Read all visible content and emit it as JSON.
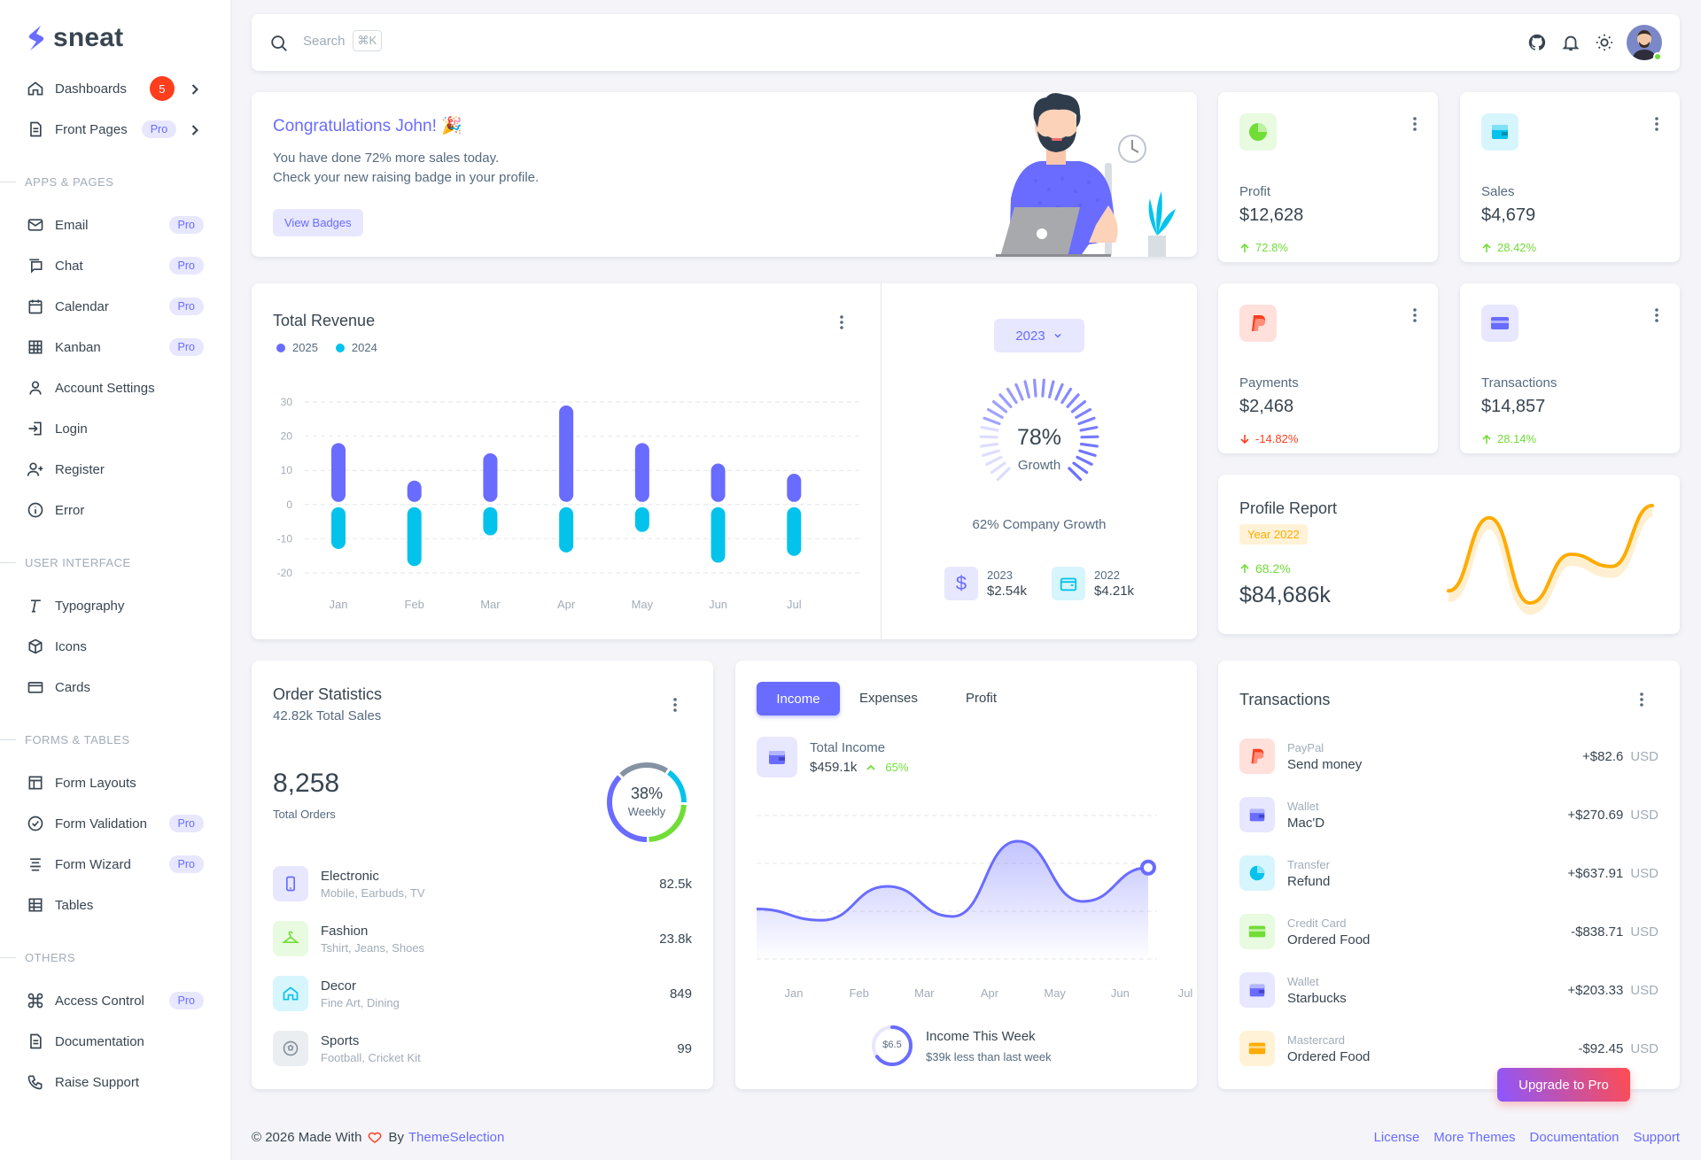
{
  "brand": {
    "name": "sneat"
  },
  "sidebar": {
    "dashboards": {
      "label": "Dashboards",
      "badge": "5"
    },
    "front_pages": {
      "label": "Front Pages",
      "badge": "Pro"
    },
    "sections": {
      "apps": "APPS & PAGES",
      "ui": "USER INTERFACE",
      "forms": "FORMS & TABLES",
      "others": "OTHERS"
    },
    "items": [
      {
        "label": "Email",
        "badge": "Pro",
        "icon": "mail-icon"
      },
      {
        "label": "Chat",
        "badge": "Pro",
        "icon": "chat-icon"
      },
      {
        "label": "Calendar",
        "badge": "Pro",
        "icon": "calendar-icon"
      },
      {
        "label": "Kanban",
        "badge": "Pro",
        "icon": "kanban-icon"
      },
      {
        "label": "Account Settings",
        "icon": "user-icon"
      },
      {
        "label": "Login",
        "icon": "login-icon"
      },
      {
        "label": "Register",
        "icon": "user-plus-icon"
      },
      {
        "label": "Error",
        "icon": "info-icon"
      },
      {
        "label": "Typography",
        "icon": "typography-icon"
      },
      {
        "label": "Icons",
        "icon": "box-icon"
      },
      {
        "label": "Cards",
        "icon": "card-icon"
      },
      {
        "label": "Form Layouts",
        "icon": "layout-icon"
      },
      {
        "label": "Form Validation",
        "badge": "Pro",
        "icon": "check-circle-icon"
      },
      {
        "label": "Form Wizard",
        "badge": "Pro",
        "icon": "list-icon"
      },
      {
        "label": "Tables",
        "icon": "table-icon"
      },
      {
        "label": "Access Control",
        "badge": "Pro",
        "icon": "command-icon"
      },
      {
        "label": "Documentation",
        "icon": "file-icon"
      },
      {
        "label": "Raise Support",
        "icon": "phone-icon"
      }
    ]
  },
  "navbar": {
    "search_placeholder": "Search",
    "shortcut": "⌘K"
  },
  "welcome": {
    "title": "Congratulations John! 🎉",
    "line1": "You have done 72% more sales today.",
    "line2": "Check your new raising badge in your profile.",
    "button": "View Badges"
  },
  "stats": {
    "profit": {
      "label": "Profit",
      "value": "$12,628",
      "trend": "72.8%",
      "direction": "up"
    },
    "sales": {
      "label": "Sales",
      "value": "$4,679",
      "trend": "28.42%",
      "direction": "up"
    },
    "payments": {
      "label": "Payments",
      "value": "$2,468",
      "trend": "-14.82%",
      "direction": "down"
    },
    "transactions": {
      "label": "Transactions",
      "value": "$14,857",
      "trend": "28.14%",
      "direction": "up"
    }
  },
  "revenue": {
    "title": "Total Revenue",
    "year_button": "2023",
    "growth_pct": "78%",
    "growth_label": "Growth",
    "company_growth": "62% Company Growth",
    "y2023": {
      "year": "2023",
      "value": "$2.54k"
    },
    "y2022": {
      "year": "2022",
      "value": "$4.21k"
    }
  },
  "profile_report": {
    "title": "Profile Report",
    "badge": "Year 2022",
    "trend": "68.2%",
    "value": "$84,686k"
  },
  "order_stats": {
    "title": "Order Statistics",
    "subtitle": "42.82k Total Sales",
    "total": "8,258",
    "total_label": "Total Orders",
    "donut_pct": "38%",
    "donut_label": "Weekly",
    "rows": [
      {
        "name": "Electronic",
        "sub": "Mobile, Earbuds, TV",
        "value": "82.5k"
      },
      {
        "name": "Fashion",
        "sub": "Tshirt, Jeans, Shoes",
        "value": "23.8k"
      },
      {
        "name": "Decor",
        "sub": "Fine Art, Dining",
        "value": "849"
      },
      {
        "name": "Sports",
        "sub": "Football, Cricket Kit",
        "value": "99"
      }
    ]
  },
  "income": {
    "tabs": [
      "Income",
      "Expenses",
      "Profit"
    ],
    "total_label": "Total Income",
    "total_value": "$459.1k",
    "trend": "65%",
    "week_value": "$6.5",
    "week_title": "Income This Week",
    "week_sub": "$39k less than last week"
  },
  "transactions": {
    "title": "Transactions",
    "rows": [
      {
        "type": "PayPal",
        "desc": "Send money",
        "amount": "+$82.6",
        "currency": "USD"
      },
      {
        "type": "Wallet",
        "desc": "Mac'D",
        "amount": "+$270.69",
        "currency": "USD"
      },
      {
        "type": "Transfer",
        "desc": "Refund",
        "amount": "+$637.91",
        "currency": "USD"
      },
      {
        "type": "Credit Card",
        "desc": "Ordered Food",
        "amount": "-$838.71",
        "currency": "USD"
      },
      {
        "type": "Wallet",
        "desc": "Starbucks",
        "amount": "+$203.33",
        "currency": "USD"
      },
      {
        "type": "Mastercard",
        "desc": "Ordered Food",
        "amount": "-$92.45",
        "currency": "USD"
      }
    ]
  },
  "upgrade": "Upgrade to Pro",
  "footer": {
    "copyright": "© 2026 Made With",
    "by": "By",
    "company": "ThemeSelection",
    "links": [
      "License",
      "More Themes",
      "Documentation",
      "Support"
    ]
  },
  "colors": {
    "primary": "#696cff",
    "cyan": "#03c3ec",
    "success": "#71dd37",
    "danger": "#ff3e1d",
    "warning": "#ffab00"
  },
  "chart_data": [
    {
      "type": "bar",
      "categories": [
        "Jan",
        "Feb",
        "Mar",
        "Apr",
        "May",
        "Jun",
        "Jul"
      ],
      "series": [
        {
          "name": "2025",
          "values": [
            18,
            7,
            15,
            29,
            18,
            12,
            9
          ]
        },
        {
          "name": "2024",
          "values": [
            -13,
            -18,
            -9,
            -14,
            -8,
            -17,
            -15
          ]
        }
      ],
      "ylim": [
        -20,
        30
      ],
      "yticks": [
        30,
        20,
        10,
        0,
        -10,
        -20
      ],
      "legend": "top-left",
      "grid": true
    },
    {
      "type": "area",
      "categories": [
        "Jan",
        "Feb",
        "Mar",
        "Apr",
        "May",
        "Jun",
        "Jul"
      ],
      "series": [
        {
          "values": [
            24,
            21,
            30,
            22,
            42,
            26,
            35
          ]
        }
      ]
    },
    {
      "type": "line",
      "series": [
        {
          "values": [
            10,
            40,
            5,
            25,
            20,
            45
          ]
        }
      ]
    }
  ]
}
